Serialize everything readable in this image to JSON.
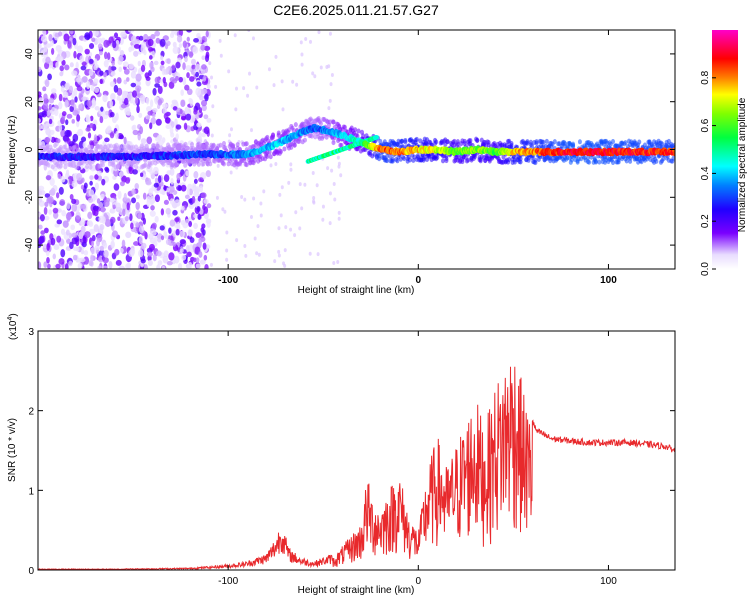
{
  "title": "C2E6.2025.011.21.57.G27",
  "chart_data": [
    {
      "type": "heatmap",
      "xlabel": "Height of straight line (km)",
      "ylabel": "Frequency (Hz)",
      "xlim": [
        -200,
        135
      ],
      "ylim": [
        -50,
        50
      ],
      "x_ticks": [
        -100,
        0,
        100
      ],
      "x_tick_labels": [
        "-100",
        "0",
        "100"
      ],
      "y_ticks": [
        40,
        20,
        0,
        -20,
        -40
      ],
      "y_tick_labels": [
        "40",
        "20",
        "0",
        "-20",
        "-40"
      ],
      "colorbar": {
        "label": "Normalized spectral amplitude",
        "range": [
          0,
          1
        ],
        "ticks": [
          0.0,
          0.2,
          0.4,
          0.6,
          0.8
        ],
        "tick_labels": [
          "0.0",
          "0.2",
          "0.4",
          "0.6",
          "0.8"
        ]
      },
      "ridge": {
        "description_points_x": [
          -200,
          -150,
          -110,
          -90,
          -75,
          -62,
          -55,
          -48,
          -40,
          -30,
          -20,
          -10,
          0,
          10,
          20,
          30,
          40,
          50,
          80,
          135
        ],
        "description_points_y": [
          -3,
          -3,
          -2,
          -2,
          2,
          7,
          9,
          8,
          6,
          3,
          0,
          -1,
          0,
          0,
          -1,
          0,
          -1,
          -1,
          -1,
          -1
        ],
        "amplitude": [
          0.25,
          0.25,
          0.3,
          0.35,
          0.4,
          0.35,
          0.3,
          0.35,
          0.4,
          0.5,
          0.85,
          0.8,
          0.75,
          0.7,
          0.6,
          0.65,
          0.6,
          0.75,
          0.9,
          0.85
        ]
      }
    },
    {
      "type": "line",
      "xlabel": "Height of straight line (km)",
      "ylabel": "SNR (10 * v/v)",
      "y_scale_label": "(x10",
      "y_scale_exp": "4",
      "y_scale_close": ")",
      "xlim": [
        -200,
        135
      ],
      "ylim": [
        0,
        3
      ],
      "x_ticks": [
        -100,
        0,
        100
      ],
      "x_tick_labels": [
        "-100",
        "0",
        "100"
      ],
      "y_ticks": [
        0,
        1,
        2,
        3
      ],
      "y_tick_labels": [
        "0",
        "1",
        "2",
        "3"
      ],
      "color": "#e8292c",
      "series": [
        {
          "envelope_x": [
            -200,
            -160,
            -120,
            -100,
            -90,
            -80,
            -75,
            -72,
            -68,
            -62,
            -55,
            -45,
            -40,
            -35,
            -30,
            -27,
            -24,
            -20,
            -15,
            -10,
            -5,
            0,
            5,
            10,
            15,
            20,
            25,
            30,
            35,
            40,
            45,
            50,
            55,
            58,
            62,
            70,
            80,
            90,
            100,
            110,
            120,
            130,
            135
          ],
          "envelope_y": [
            0.01,
            0.01,
            0.02,
            0.05,
            0.08,
            0.15,
            0.3,
            0.45,
            0.2,
            0.12,
            0.08,
            0.15,
            0.3,
            0.45,
            0.6,
            1.2,
            0.9,
            0.8,
            1.05,
            1.25,
            0.7,
            0.5,
            1.3,
            1.7,
            1.3,
            1.6,
            1.9,
            2.2,
            1.8,
            2.3,
            2.6,
            2.9,
            2.3,
            2.0,
            1.75,
            1.65,
            1.62,
            1.6,
            1.6,
            1.6,
            1.58,
            1.55,
            1.5
          ]
        }
      ]
    }
  ]
}
